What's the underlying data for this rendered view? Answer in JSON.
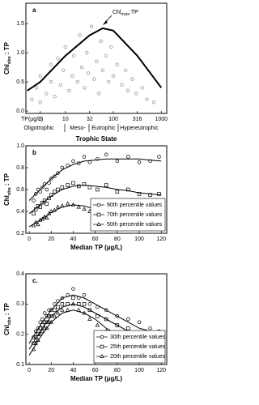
{
  "chart_data": [
    {
      "type": "scatter",
      "panel_label": "a",
      "x_prefix_label": "TP(µg/L)",
      "xlabel": "Trophic State",
      "ylabel": {
        "main": "Chl",
        "sub": "obs",
        "rest": " : TP"
      },
      "annotation": {
        "main": "Chl",
        "sub": "max",
        "rest": ":TP"
      },
      "trophic_states": [
        "Oligotrophic",
        "Meso-",
        "Eutrophic",
        "Hypereutrophic"
      ],
      "xlog": true,
      "xlim": [
        1.5,
        1300
      ],
      "xticks": [
        3,
        10,
        32,
        100,
        316,
        1000
      ],
      "ylim": [
        -0.04,
        1.85
      ],
      "yticks": [
        {
          "value": 0,
          "label": "0.0"
        },
        {
          "value": 0.5,
          "label": "0.5"
        },
        {
          "value": 1,
          "label": "1.0"
        },
        {
          "value": 1.5,
          "label": "1.5"
        }
      ],
      "series": [
        {
          "marker": "circle",
          "color": "#8a8a8a",
          "x": [
            2,
            2.5,
            3,
            3,
            4,
            5,
            5,
            6,
            7,
            8,
            9,
            10,
            12,
            14,
            15,
            18,
            20,
            22,
            25,
            28,
            30,
            35,
            40,
            45,
            50,
            55,
            60,
            70,
            80,
            90,
            100,
            120,
            150,
            180,
            200,
            250,
            300,
            400,
            500,
            700
          ],
          "values": [
            0.2,
            0.4,
            0.15,
            0.6,
            0.3,
            0.8,
            0.5,
            0.25,
            0.9,
            0.45,
            0.7,
            1.1,
            0.35,
            0.6,
            0.95,
            0.5,
            1.3,
            0.75,
            0.4,
            1.0,
            0.65,
            1.45,
            0.55,
            0.85,
            0.3,
            1.2,
            0.7,
            0.95,
            0.5,
            1.1,
            0.6,
            0.8,
            0.45,
            0.7,
            0.35,
            0.55,
            0.3,
            0.4,
            0.2,
            0.15
          ]
        }
      ],
      "curves": [
        {
          "color": "#000000",
          "x": [
            1.6,
            3,
            10,
            32,
            60,
            100,
            316,
            1000
          ],
          "values": [
            0.35,
            0.5,
            0.95,
            1.3,
            1.42,
            1.38,
            0.95,
            0.4
          ]
        }
      ]
    },
    {
      "type": "scatter",
      "panel_label": "b",
      "xlabel": "Median TP (µg/L)",
      "ylabel": {
        "main": "Chl",
        "sub": "obs",
        "rest": " : TP"
      },
      "xlim": [
        -3,
        125
      ],
      "xticks": [
        0,
        20,
        40,
        60,
        80,
        100,
        120
      ],
      "ylim": [
        0.2,
        1.0
      ],
      "yticks": [
        0.2,
        0.4,
        0.6,
        0.8,
        {
          "value": 1,
          "label": "1.0"
        }
      ],
      "series": [
        {
          "name": "90th percentile values",
          "marker": "circle",
          "color": "#000000",
          "x": [
            4,
            6,
            8,
            10,
            12,
            14,
            16,
            18,
            20,
            23,
            26,
            30,
            35,
            40,
            45,
            50,
            55,
            62,
            70,
            80,
            90,
            100,
            110,
            118
          ],
          "values": [
            0.5,
            0.56,
            0.6,
            0.58,
            0.62,
            0.65,
            0.6,
            0.66,
            0.7,
            0.72,
            0.75,
            0.8,
            0.82,
            0.86,
            0.84,
            0.9,
            0.85,
            0.88,
            0.92,
            0.86,
            0.9,
            0.85,
            0.86,
            0.9
          ]
        },
        {
          "name": "70th percentile values",
          "marker": "square",
          "color": "#000000",
          "x": [
            4,
            6,
            8,
            10,
            12,
            14,
            16,
            18,
            20,
            23,
            26,
            30,
            35,
            40,
            45,
            50,
            55,
            62,
            70,
            80,
            90,
            100,
            110,
            118
          ],
          "values": [
            0.38,
            0.42,
            0.45,
            0.44,
            0.48,
            0.5,
            0.47,
            0.52,
            0.55,
            0.58,
            0.6,
            0.62,
            0.64,
            0.66,
            0.63,
            0.65,
            0.62,
            0.6,
            0.64,
            0.58,
            0.6,
            0.56,
            0.55,
            0.56
          ]
        },
        {
          "name": "50th percentile values",
          "marker": "triangle",
          "color": "#000000",
          "x": [
            4,
            6,
            8,
            10,
            12,
            14,
            16,
            18,
            20,
            23,
            26,
            30,
            35,
            40,
            45,
            50,
            55,
            62,
            70,
            80,
            90,
            100,
            110,
            118
          ],
          "values": [
            0.27,
            0.3,
            0.28,
            0.32,
            0.33,
            0.35,
            0.34,
            0.38,
            0.4,
            0.41,
            0.44,
            0.45,
            0.47,
            0.46,
            0.44,
            0.42,
            0.4,
            0.38,
            0.36,
            0.32,
            0.3,
            0.28,
            0.26,
            0.25
          ]
        }
      ],
      "curves": [
        {
          "color": "#000000",
          "x": [
            0,
            10,
            20,
            30,
            40,
            50,
            60,
            70,
            80,
            90,
            100,
            110,
            120
          ],
          "values": [
            0.5,
            0.6,
            0.7,
            0.78,
            0.83,
            0.86,
            0.87,
            0.88,
            0.88,
            0.88,
            0.88,
            0.87,
            0.86
          ]
        },
        {
          "color": "#000000",
          "x": [
            0,
            10,
            20,
            30,
            40,
            50,
            60,
            70,
            80,
            90,
            100,
            110,
            120
          ],
          "values": [
            0.38,
            0.46,
            0.54,
            0.6,
            0.63,
            0.64,
            0.63,
            0.62,
            0.6,
            0.59,
            0.57,
            0.56,
            0.55
          ]
        },
        {
          "color": "#000000",
          "x": [
            0,
            10,
            20,
            30,
            40,
            50,
            60,
            70,
            80,
            90,
            100,
            110,
            120
          ],
          "values": [
            0.26,
            0.32,
            0.39,
            0.44,
            0.46,
            0.45,
            0.42,
            0.38,
            0.34,
            0.31,
            0.28,
            0.26,
            0.24
          ]
        }
      ]
    },
    {
      "type": "scatter",
      "panel_label": "c.",
      "xlabel": "Median TP (µg/L)",
      "ylabel": {
        "main": "Chl",
        "sub": "obs",
        "rest": " : TP"
      },
      "xlim": [
        -3,
        125
      ],
      "xticks": [
        0,
        20,
        40,
        60,
        80,
        100,
        120
      ],
      "ylim": [
        0.1,
        0.4
      ],
      "yticks": [
        0.1,
        0.2,
        0.3,
        0.4
      ],
      "series": [
        {
          "name": "30th percentile values",
          "marker": "circle",
          "color": "#000000",
          "x": [
            4,
            6,
            8,
            10,
            12,
            14,
            16,
            18,
            20,
            23,
            26,
            30,
            35,
            40,
            45,
            50,
            55,
            62,
            70,
            80,
            90,
            100,
            110,
            118
          ],
          "values": [
            0.19,
            0.21,
            0.22,
            0.24,
            0.25,
            0.27,
            0.26,
            0.28,
            0.28,
            0.3,
            0.31,
            0.32,
            0.33,
            0.35,
            0.32,
            0.33,
            0.3,
            0.29,
            0.28,
            0.26,
            0.25,
            0.24,
            0.22,
            0.21
          ]
        },
        {
          "name": "25th percentile values",
          "marker": "square",
          "color": "#000000",
          "x": [
            4,
            6,
            8,
            10,
            12,
            14,
            16,
            18,
            20,
            23,
            26,
            30,
            35,
            40,
            45,
            50,
            55,
            62,
            70,
            80,
            90,
            100,
            110,
            118
          ],
          "values": [
            0.17,
            0.19,
            0.2,
            0.22,
            0.23,
            0.24,
            0.24,
            0.26,
            0.26,
            0.28,
            0.29,
            0.3,
            0.3,
            0.32,
            0.3,
            0.3,
            0.28,
            0.26,
            0.25,
            0.23,
            0.22,
            0.2,
            0.19,
            0.18
          ]
        },
        {
          "name": "20th percentile values",
          "marker": "triangle",
          "color": "#000000",
          "x": [
            4,
            6,
            8,
            10,
            12,
            14,
            16,
            18,
            20,
            23,
            26,
            30,
            35,
            40,
            45,
            50,
            55,
            62,
            70,
            80,
            90,
            100,
            110,
            118
          ],
          "values": [
            0.15,
            0.17,
            0.18,
            0.2,
            0.21,
            0.22,
            0.22,
            0.24,
            0.24,
            0.26,
            0.27,
            0.28,
            0.28,
            0.3,
            0.28,
            0.27,
            0.25,
            0.23,
            0.21,
            0.2,
            0.18,
            0.17,
            0.15,
            0.15
          ]
        }
      ],
      "curves": [
        {
          "color": "#000000",
          "x": [
            0,
            10,
            20,
            30,
            40,
            50,
            60,
            70,
            80,
            90,
            100,
            110,
            120
          ],
          "values": [
            0.17,
            0.23,
            0.28,
            0.32,
            0.33,
            0.32,
            0.3,
            0.28,
            0.26,
            0.24,
            0.22,
            0.21,
            0.19
          ]
        },
        {
          "color": "#000000",
          "x": [
            0,
            10,
            20,
            30,
            40,
            50,
            60,
            70,
            80,
            90,
            100,
            110,
            120
          ],
          "values": [
            0.15,
            0.21,
            0.26,
            0.29,
            0.3,
            0.29,
            0.27,
            0.25,
            0.23,
            0.21,
            0.19,
            0.18,
            0.16
          ]
        },
        {
          "color": "#000000",
          "x": [
            0,
            10,
            20,
            30,
            40,
            50,
            60,
            70,
            80,
            90,
            100,
            110,
            120
          ],
          "values": [
            0.13,
            0.19,
            0.24,
            0.27,
            0.28,
            0.27,
            0.25,
            0.22,
            0.2,
            0.18,
            0.16,
            0.15,
            0.13
          ]
        }
      ]
    }
  ]
}
